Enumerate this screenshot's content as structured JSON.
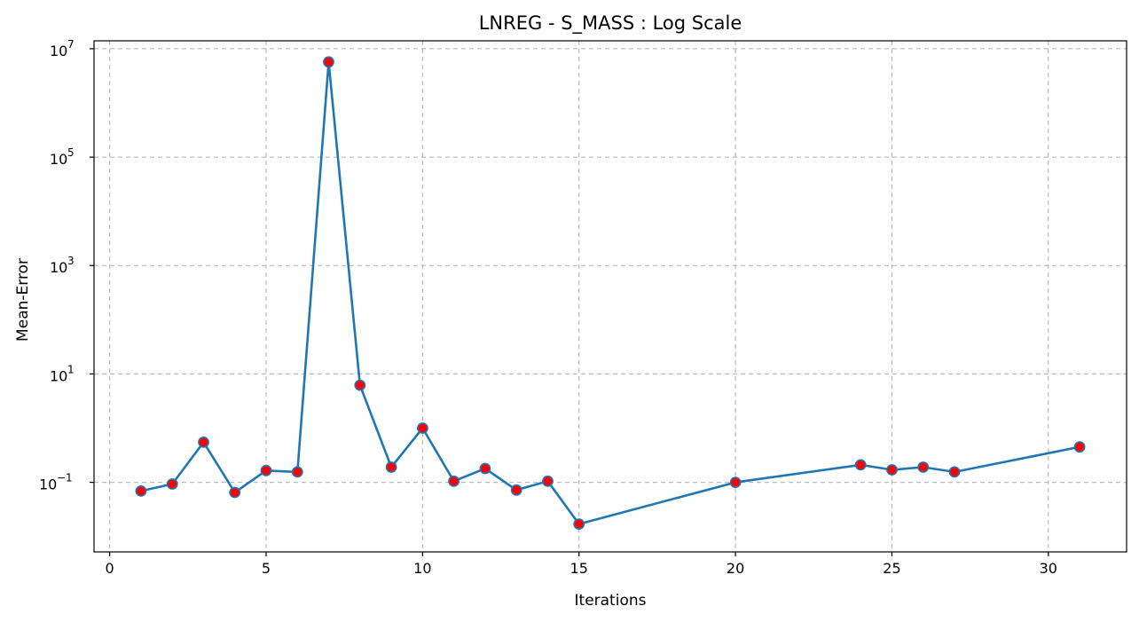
{
  "chart_data": {
    "type": "line",
    "title": "LNREG - S_MASS : Log Scale",
    "xlabel": "Iterations",
    "ylabel": "Mean-Error",
    "yscale": "log",
    "xlim": [
      -0.5,
      32.5
    ],
    "ylim": [
      0.0052,
      14000000
    ],
    "xticks": [
      0,
      5,
      10,
      15,
      20,
      25,
      30
    ],
    "yticks": [
      {
        "value": 0.1,
        "base": "10",
        "exp": "−1"
      },
      {
        "value": 10,
        "base": "10",
        "exp": "1"
      },
      {
        "value": 1000,
        "base": "10",
        "exp": "3"
      },
      {
        "value": 100000,
        "base": "10",
        "exp": "5"
      },
      {
        "value": 10000000,
        "base": "10",
        "exp": "7"
      }
    ],
    "grid": true,
    "series": [
      {
        "line_color": "#1f77b4",
        "marker_face": "#ff0000",
        "marker_edge": "#1f77b4",
        "x": [
          1,
          2,
          3,
          4,
          5,
          6,
          7,
          8,
          9,
          10,
          11,
          12,
          13,
          14,
          15,
          20,
          24,
          25,
          26,
          27,
          31
        ],
        "y": [
          0.069,
          0.093,
          0.55,
          0.065,
          0.165,
          0.155,
          5700000,
          6.2,
          0.19,
          1.0,
          0.105,
          0.18,
          0.072,
          0.105,
          0.017,
          0.1,
          0.21,
          0.17,
          0.19,
          0.155,
          0.45
        ]
      }
    ]
  }
}
